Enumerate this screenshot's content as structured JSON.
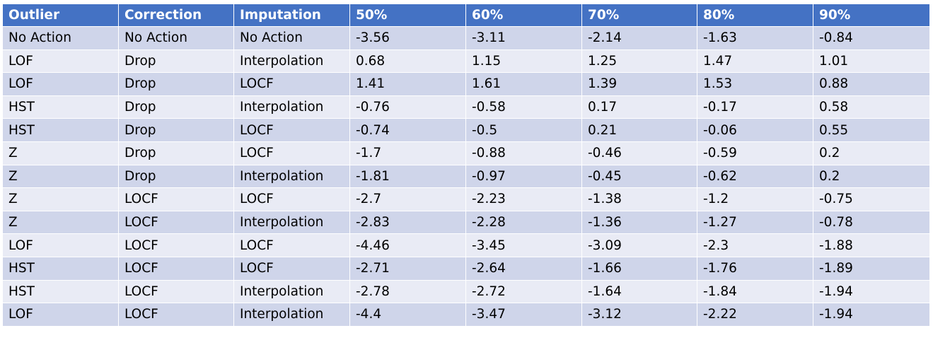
{
  "table": {
    "headers": [
      "Outlier",
      "Correction",
      "Imputation",
      "50%",
      "60%",
      "70%",
      "80%",
      "90%"
    ],
    "rows": [
      [
        "No Action",
        "No Action",
        "No Action",
        "-3.56",
        "-3.11",
        "-2.14",
        "-1.63",
        "-0.84"
      ],
      [
        "LOF",
        "Drop",
        "Interpolation",
        "0.68",
        "1.15",
        "1.25",
        "1.47",
        "1.01"
      ],
      [
        "LOF",
        "Drop",
        "LOCF",
        "1.41",
        "1.61",
        "1.39",
        "1.53",
        "0.88"
      ],
      [
        "HST",
        "Drop",
        "Interpolation",
        "-0.76",
        "-0.58",
        "0.17",
        "-0.17",
        "0.58"
      ],
      [
        "HST",
        "Drop",
        "LOCF",
        "-0.74",
        "-0.5",
        "0.21",
        "-0.06",
        "0.55"
      ],
      [
        "Z",
        "Drop",
        "LOCF",
        "-1.7",
        "-0.88",
        "-0.46",
        "-0.59",
        "0.2"
      ],
      [
        "Z",
        "Drop",
        "Interpolation",
        "-1.81",
        "-0.97",
        "-0.45",
        "-0.62",
        "0.2"
      ],
      [
        "Z",
        "LOCF",
        "LOCF",
        "-2.7",
        "-2.23",
        "-1.38",
        "-1.2",
        "-0.75"
      ],
      [
        "Z",
        "LOCF",
        "Interpolation",
        "-2.83",
        "-2.28",
        "-1.36",
        "-1.27",
        "-0.78"
      ],
      [
        "LOF",
        "LOCF",
        "LOCF",
        "-4.46",
        "-3.45",
        "-3.09",
        "-2.3",
        "-1.88"
      ],
      [
        "HST",
        "LOCF",
        "LOCF",
        "-2.71",
        "-2.64",
        "-1.66",
        "-1.76",
        "-1.89"
      ],
      [
        "HST",
        "LOCF",
        "Interpolation",
        "-2.78",
        "-2.72",
        "-1.64",
        "-1.84",
        "-1.94"
      ],
      [
        "LOF",
        "LOCF",
        "Interpolation",
        "-4.4",
        "-3.47",
        "-3.12",
        "-2.22",
        "-1.94"
      ]
    ]
  },
  "colors": {
    "header_bg": "#4472c4",
    "row_odd_bg": "#cfd5ea",
    "row_even_bg": "#e9ebf5",
    "border": "#ffffff"
  }
}
